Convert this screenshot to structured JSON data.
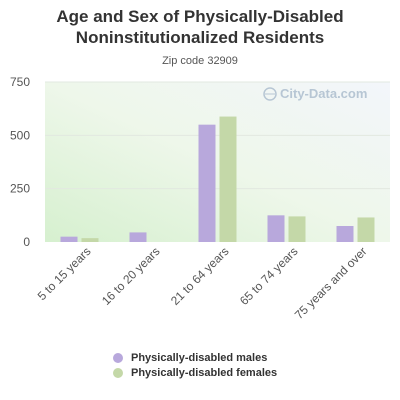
{
  "chart_data": {
    "type": "bar",
    "title_line1": "Age and Sex of Physically-Disabled",
    "title_line2": "Noninstitutionalized Residents",
    "subtitle": "Zip code 32909",
    "watermark": "City-Data.com",
    "categories": [
      "5 to 15 years",
      "16 to 20 years",
      "21 to 64 years",
      "65 to 74 years",
      "75 years and over"
    ],
    "series": [
      {
        "name": "Physically-disabled males",
        "color": "#b8a8dc",
        "values": [
          25,
          45,
          550,
          125,
          75
        ]
      },
      {
        "name": "Physically-disabled females",
        "color": "#c4d8a8",
        "values": [
          18,
          0,
          588,
          120,
          115
        ]
      }
    ],
    "yticks": [
      0,
      250,
      500,
      750
    ],
    "ylim": [
      0,
      750
    ],
    "grid": true,
    "legend_position": "bottom"
  }
}
